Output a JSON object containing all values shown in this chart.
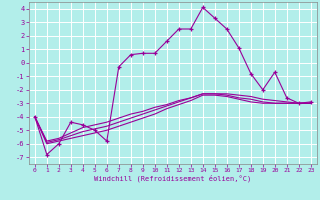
{
  "xlabel": "Windchill (Refroidissement éolien,°C)",
  "xlim": [
    -0.5,
    23.5
  ],
  "ylim": [
    -7.5,
    4.5
  ],
  "xticks": [
    0,
    1,
    2,
    3,
    4,
    5,
    6,
    7,
    8,
    9,
    10,
    11,
    12,
    13,
    14,
    15,
    16,
    17,
    18,
    19,
    20,
    21,
    22,
    23
  ],
  "yticks": [
    -7,
    -6,
    -5,
    -4,
    -3,
    -2,
    -1,
    0,
    1,
    2,
    3,
    4
  ],
  "background_color": "#b2eeea",
  "grid_color": "#ffffff",
  "line_color": "#990099",
  "lines": [
    {
      "x": [
        0,
        1,
        2,
        3,
        4,
        5,
        6,
        7,
        8,
        9,
        10,
        11,
        12,
        13,
        14,
        15,
        16,
        17,
        18,
        19,
        20,
        21,
        22,
        23
      ],
      "y": [
        -4.0,
        -6.8,
        -6.0,
        -4.4,
        -4.6,
        -5.0,
        -5.8,
        -0.3,
        0.6,
        0.7,
        0.7,
        1.6,
        2.5,
        2.5,
        4.1,
        3.3,
        2.5,
        1.1,
        -0.8,
        -2.0,
        -0.7,
        -2.6,
        -3.0,
        -2.9
      ],
      "marker": "+"
    },
    {
      "x": [
        0,
        1,
        2,
        3,
        4,
        5,
        6,
        7,
        8,
        9,
        10,
        11,
        12,
        13,
        14,
        15,
        16,
        17,
        18,
        19,
        20,
        21,
        22,
        23
      ],
      "y": [
        -4.0,
        -5.8,
        -5.6,
        -5.2,
        -4.8,
        -4.6,
        -4.4,
        -4.1,
        -3.8,
        -3.6,
        -3.3,
        -3.1,
        -2.8,
        -2.6,
        -2.3,
        -2.3,
        -2.3,
        -2.4,
        -2.5,
        -2.7,
        -2.8,
        -2.9,
        -3.0,
        -3.0
      ],
      "marker": null
    },
    {
      "x": [
        0,
        1,
        2,
        3,
        4,
        5,
        6,
        7,
        8,
        9,
        10,
        11,
        12,
        13,
        14,
        15,
        16,
        17,
        18,
        19,
        20,
        21,
        22,
        23
      ],
      "y": [
        -4.0,
        -5.9,
        -5.7,
        -5.4,
        -5.1,
        -4.9,
        -4.7,
        -4.4,
        -4.1,
        -3.8,
        -3.5,
        -3.2,
        -2.9,
        -2.6,
        -2.3,
        -2.3,
        -2.4,
        -2.6,
        -2.7,
        -2.9,
        -3.0,
        -3.0,
        -3.0,
        -3.0
      ],
      "marker": null
    },
    {
      "x": [
        0,
        1,
        2,
        3,
        4,
        5,
        6,
        7,
        8,
        9,
        10,
        11,
        12,
        13,
        14,
        15,
        16,
        17,
        18,
        19,
        20,
        21,
        22,
        23
      ],
      "y": [
        -4.0,
        -6.0,
        -5.8,
        -5.6,
        -5.4,
        -5.2,
        -5.0,
        -4.7,
        -4.4,
        -4.1,
        -3.8,
        -3.4,
        -3.1,
        -2.8,
        -2.4,
        -2.4,
        -2.5,
        -2.7,
        -2.9,
        -3.0,
        -3.0,
        -3.0,
        -3.0,
        -3.0
      ],
      "marker": null
    }
  ]
}
